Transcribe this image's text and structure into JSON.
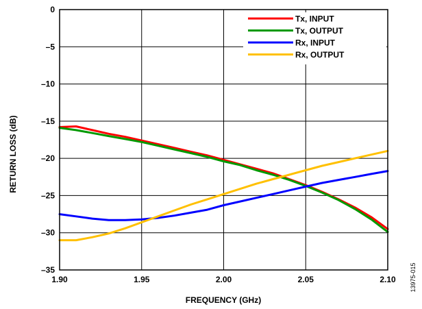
{
  "figure_id": "13975-015",
  "chart_data": {
    "type": "line",
    "xlabel": "FREQUENCY (GHz)",
    "ylabel": "RETURN LOSS (dB)",
    "xlim": [
      1.9,
      2.1
    ],
    "ylim": [
      -35,
      0
    ],
    "x_ticks": [
      "1.90",
      "1.95",
      "2.00",
      "2.05",
      "2.10"
    ],
    "y_ticks": [
      "0",
      "–5",
      "–10",
      "–15",
      "–20",
      "–25",
      "–30",
      "–35"
    ],
    "grid": true,
    "legend_position": "top-right",
    "series": [
      {
        "name": "Tx, INPUT",
        "color": "#ff0000",
        "x": [
          1.9,
          1.91,
          1.92,
          1.93,
          1.94,
          1.95,
          1.96,
          1.97,
          1.98,
          1.99,
          2.0,
          2.01,
          2.02,
          2.03,
          2.04,
          2.05,
          2.06,
          2.07,
          2.08,
          2.09,
          2.1
        ],
        "y": [
          -15.8,
          -15.7,
          -16.2,
          -16.7,
          -17.1,
          -17.6,
          -18.1,
          -18.6,
          -19.1,
          -19.6,
          -20.2,
          -20.8,
          -21.4,
          -22.0,
          -22.8,
          -23.6,
          -24.5,
          -25.5,
          -26.6,
          -27.9,
          -29.5
        ]
      },
      {
        "name": "Tx, OUTPUT",
        "color": "#009900",
        "x": [
          1.9,
          1.91,
          1.92,
          1.93,
          1.94,
          1.95,
          1.96,
          1.97,
          1.98,
          1.99,
          2.0,
          2.01,
          2.02,
          2.03,
          2.04,
          2.05,
          2.06,
          2.07,
          2.08,
          2.09,
          2.1
        ],
        "y": [
          -15.9,
          -16.2,
          -16.6,
          -17.0,
          -17.4,
          -17.8,
          -18.3,
          -18.8,
          -19.3,
          -19.8,
          -20.4,
          -20.9,
          -21.6,
          -22.2,
          -22.9,
          -23.7,
          -24.6,
          -25.6,
          -26.8,
          -28.2,
          -29.9
        ]
      },
      {
        "name": "Rx, INPUT",
        "color": "#0000ff",
        "x": [
          1.9,
          1.91,
          1.92,
          1.93,
          1.94,
          1.95,
          1.96,
          1.97,
          1.98,
          1.99,
          2.0,
          2.01,
          2.02,
          2.03,
          2.04,
          2.05,
          2.06,
          2.07,
          2.08,
          2.09,
          2.1
        ],
        "y": [
          -27.5,
          -27.8,
          -28.1,
          -28.3,
          -28.3,
          -28.2,
          -28.0,
          -27.7,
          -27.3,
          -26.9,
          -26.3,
          -25.8,
          -25.3,
          -24.8,
          -24.3,
          -23.8,
          -23.3,
          -22.9,
          -22.5,
          -22.1,
          -21.7
        ]
      },
      {
        "name": "Rx, OUTPUT",
        "color": "#ffc000",
        "x": [
          1.9,
          1.91,
          1.92,
          1.93,
          1.94,
          1.95,
          1.96,
          1.97,
          1.98,
          1.99,
          2.0,
          2.01,
          2.02,
          2.03,
          2.04,
          2.05,
          2.06,
          2.07,
          2.08,
          2.09,
          2.1
        ],
        "y": [
          -31.0,
          -31.0,
          -30.6,
          -30.1,
          -29.4,
          -28.6,
          -27.8,
          -27.0,
          -26.2,
          -25.5,
          -24.8,
          -24.1,
          -23.4,
          -22.8,
          -22.2,
          -21.6,
          -21.0,
          -20.5,
          -20.0,
          -19.5,
          -19.0
        ]
      }
    ]
  }
}
